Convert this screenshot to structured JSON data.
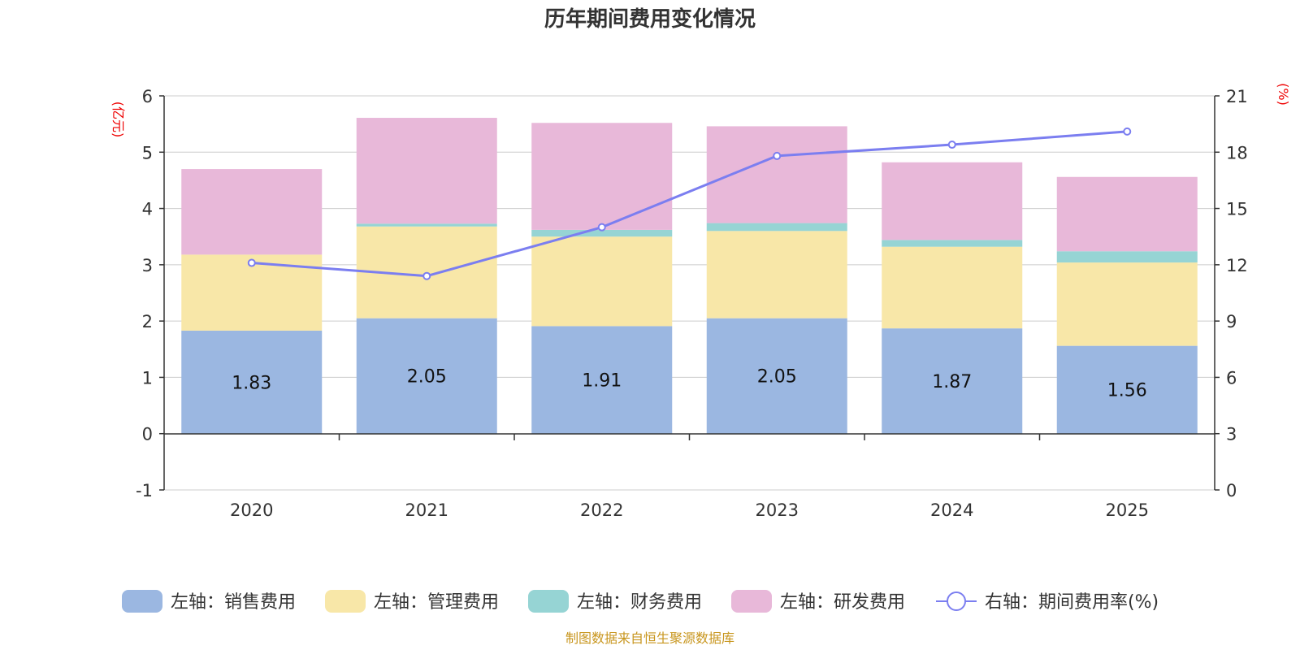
{
  "chart_data": {
    "type": "bar",
    "stacked": true,
    "title": "历年期间费用变化情况",
    "categories": [
      "2020",
      "2021",
      "2022",
      "2023",
      "2024",
      "2025"
    ],
    "series": [
      {
        "name": "左轴：销售费用",
        "axis": "left",
        "type": "bar",
        "color": "#9bb7e1",
        "values": [
          1.83,
          2.05,
          1.91,
          2.05,
          1.87,
          1.56
        ],
        "labels": [
          "1.83",
          "2.05",
          "1.91",
          "2.05",
          "1.87",
          "1.56"
        ]
      },
      {
        "name": "左轴：管理费用",
        "axis": "left",
        "type": "bar",
        "color": "#f8e7a8",
        "values": [
          1.35,
          1.63,
          1.59,
          1.55,
          1.45,
          1.48
        ]
      },
      {
        "name": "左轴：财务费用",
        "axis": "left",
        "type": "bar",
        "color": "#96d4d4",
        "values": [
          0.0,
          0.05,
          0.12,
          0.14,
          0.12,
          0.2
        ]
      },
      {
        "name": "左轴：研发费用",
        "axis": "left",
        "type": "bar",
        "color": "#e8b8d9",
        "values": [
          1.52,
          1.88,
          1.9,
          1.72,
          1.38,
          1.32
        ]
      },
      {
        "name": "右轴：期间费用率(%)",
        "axis": "right",
        "type": "line",
        "color": "#7b7ef0",
        "values": [
          12.1,
          11.4,
          14.0,
          17.8,
          18.4,
          19.1
        ]
      }
    ],
    "left_axis": {
      "unit": "(亿元)",
      "min": -1,
      "max": 6,
      "ticks": [
        "6",
        "5",
        "4",
        "3",
        "2",
        "1",
        "0",
        "-1"
      ]
    },
    "right_axis": {
      "unit": "(%)",
      "min": 0,
      "max": 21,
      "ticks": [
        "21",
        "18",
        "15",
        "12",
        "9",
        "6",
        "3",
        "0"
      ]
    },
    "legend_position": "bottom",
    "source": "制图数据来自恒生聚源数据库"
  }
}
